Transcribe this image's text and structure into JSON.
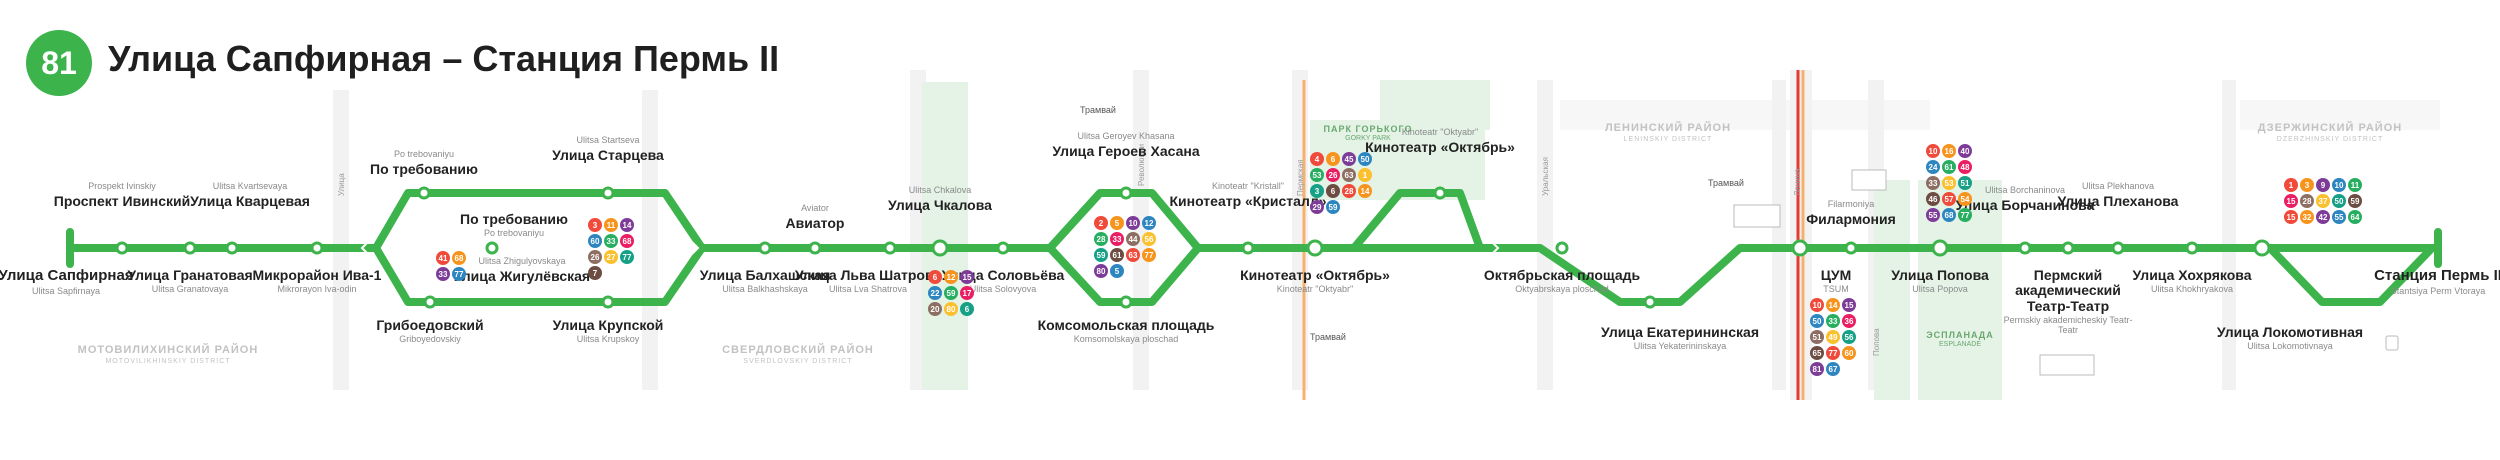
{
  "route": {
    "number": "81",
    "title": "Улица Сапфирная – Станция Пермь II",
    "color": "#3cb44b"
  },
  "stops": [
    {
      "id": "sapfirnaya",
      "ru": "Улица Сапфирная",
      "en": "Ulitsa Sapfirnaya"
    },
    {
      "id": "ivinsky",
      "ru": "Проспект Ивинский",
      "en": "Prospekt Ivinskiy"
    },
    {
      "id": "granatovaya",
      "ru": "Улица Гранатовая",
      "en": "Ulitsa Granatovaya"
    },
    {
      "id": "kvartsevaya",
      "ru": "Улица Кварцевая",
      "en": "Ulitsa Kvartsevaya"
    },
    {
      "id": "iva1",
      "ru": "Микрорайон Ива-1",
      "en": "Mikrorayon Iva-odin"
    },
    {
      "id": "griboedovsky",
      "ru": "Грибоедовский",
      "en": "Griboyedovskiy"
    },
    {
      "id": "potreb1",
      "ru": "По требованию",
      "en": "Po trebovaniyu"
    },
    {
      "id": "potreb2",
      "ru": "По требованию",
      "en": "Po trebovaniyu"
    },
    {
      "id": "zhigulevskaya",
      "ru": "Улица Жигулёвская",
      "en": "Ulitsa Zhigulyovskaya"
    },
    {
      "id": "startseva",
      "ru": "Улица Старцева",
      "en": "Ulitsa Startseva"
    },
    {
      "id": "krupskoy",
      "ru": "Улица Крупской",
      "en": "Ulitsa Krupskoy"
    },
    {
      "id": "balkhashskaya",
      "ru": "Улица Балхашская",
      "en": "Ulitsa Balkhashskaya"
    },
    {
      "id": "aviator",
      "ru": "Авиатор",
      "en": "Aviator"
    },
    {
      "id": "shatrova",
      "ru": "Улица Льва Шатрова",
      "en": "Ulitsa Lva Shatrova"
    },
    {
      "id": "chkalova",
      "ru": "Улица Чкалова",
      "en": "Ulitsa Chkalova"
    },
    {
      "id": "solovyova",
      "ru": "Улица Соловьёва",
      "en": "Ulitsa Solovyova"
    },
    {
      "id": "khasana",
      "ru": "Улица Героев Хасана",
      "en": "Ulitsa Geroyev Khasana"
    },
    {
      "id": "komsomolskaya",
      "ru": "Комсомольская площадь",
      "en": "Komsomolskaya ploschad"
    },
    {
      "id": "kristall",
      "ru": "Кинотеатр «Кристалл»",
      "en": "Kinoteatr \"Kristall\""
    },
    {
      "id": "oktyabr1",
      "ru": "Кинотеатр «Октябрь»",
      "en": "Kinoteatr \"Oktyabr\""
    },
    {
      "id": "oktyabr2",
      "ru": "Кинотеатр «Октябрь»",
      "en": "Kinoteatr \"Oktyabr\""
    },
    {
      "id": "oktyabrskaya",
      "ru": "Октябрьская площадь",
      "en": "Oktyabrskaya ploschad"
    },
    {
      "id": "ekaterininskaya",
      "ru": "Улица Екатерининская",
      "en": "Ulitsa Yekaterininskaya"
    },
    {
      "id": "tsum",
      "ru": "ЦУМ",
      "en": "TSUM"
    },
    {
      "id": "filarmoniya",
      "ru": "Филармония",
      "en": "Filarmoniya"
    },
    {
      "id": "popova",
      "ru": "Улица Попова",
      "en": "Ulitsa Popova"
    },
    {
      "id": "borchaninova",
      "ru": "Улица Борчанинова",
      "en": "Ulitsa Borchaninova"
    },
    {
      "id": "teatr",
      "ru": "Пермский академический Театр-Театр",
      "en": "Permskiy akademicheskiy Teatr-Teatr"
    },
    {
      "id": "plekhanova",
      "ru": "Улица Плеханова",
      "en": "Ulitsa Plekhanova"
    },
    {
      "id": "khokhryakova",
      "ru": "Улица Хохрякова",
      "en": "Ulitsa Khokhryakova"
    },
    {
      "id": "lokomotivnaya",
      "ru": "Улица Локомотивная",
      "en": "Ulitsa Lokomotivnaya"
    },
    {
      "id": "perm2",
      "ru": "Станция Пермь II",
      "en": "Stantsiya Perm Vtoraya"
    }
  ],
  "districts": [
    {
      "ru": "МОТОВИЛИХИНСКИЙ РАЙОН",
      "en": "MOTOVILIKHINSKIY DISTRICT"
    },
    {
      "ru": "СВЕРДЛОВСКИЙ РАЙОН",
      "en": "SVERDLOVSKIY DISTRICT"
    },
    {
      "ru": "ЛЕНИНСКИЙ РАЙОН",
      "en": "LENINSKIY DISTRICT"
    },
    {
      "ru": "ДЗЕРЖИНСКИЙ РАЙОН",
      "en": "DZERZHINSKIY DISTRICT"
    }
  ],
  "park": {
    "ru": "ПАРК ГОРЬКОГО",
    "en": "GORKY PARK"
  },
  "esplanade": {
    "ru": "ЭСПЛАНАДА",
    "en": "ESPLANADE"
  },
  "streets": [
    "Улица",
    "Ulitsa Chkalova",
    "Революции",
    "Пермская",
    "Ленина",
    "Попова",
    "Уральская"
  ],
  "tram_label": "Трамвай",
  "transfers": {
    "zhigulevskaya": [
      "41",
      "68",
      "33",
      "77"
    ],
    "startseva": [
      "3",
      "11",
      "14",
      "60",
      "33",
      "68",
      "26",
      "27",
      "77",
      "7"
    ],
    "chkalova_s": [
      "6",
      "12",
      "15",
      "22",
      "59",
      "17",
      "20",
      "80",
      "6"
    ],
    "khasana": [
      "2",
      "5",
      "10",
      "12",
      "28",
      "33",
      "44",
      "56",
      "59",
      "61",
      "63",
      "77",
      "80",
      "5"
    ],
    "oktyabr": [
      "4",
      "6",
      "45",
      "50",
      "53",
      "26",
      "63",
      "1",
      "3",
      "6",
      "28",
      "14",
      "29",
      "59"
    ],
    "tsum": [
      "10",
      "14",
      "15",
      "50",
      "33",
      "36",
      "51",
      "49",
      "56",
      "65",
      "77",
      "60",
      "81",
      "67"
    ],
    "popova": [
      "10",
      "16",
      "40",
      "24",
      "61",
      "48",
      "33",
      "53",
      "51",
      "46",
      "57",
      "54",
      "55",
      "68",
      "77"
    ],
    "dzerzh": [
      "1",
      "3",
      "9",
      "10",
      "11",
      "15",
      "28",
      "37",
      "50",
      "59",
      "15",
      "32",
      "42",
      "55",
      "64"
    ]
  },
  "transfer_colors": [
    "#f04a3a",
    "#f7941d",
    "#7d3c98",
    "#2e86c1",
    "#27ae60",
    "#e91e63",
    "#8d6e63",
    "#fbc02d",
    "#16a085",
    "#6d4c41"
  ]
}
